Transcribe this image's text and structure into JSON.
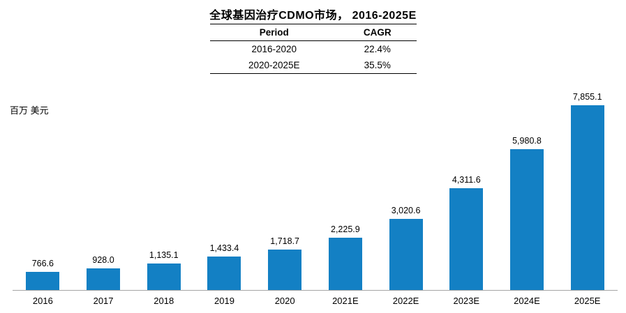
{
  "title": "全球基因治疗CDMO市场， 2016-2025E",
  "y_unit_label": "百万 美元",
  "colors": {
    "bar": "#1380C4",
    "baseline": "#a6a6a6"
  },
  "cagr_table": {
    "headers": [
      "Period",
      "CAGR"
    ],
    "rows": [
      [
        "2016-2020",
        "22.4%"
      ],
      [
        "2020-2025E",
        "35.5%"
      ]
    ]
  },
  "chart_data": {
    "type": "bar",
    "title": "全球基因治疗CDMO市场， 2016-2025E",
    "xlabel": "",
    "ylabel": "百万 美元",
    "ylim": [
      0,
      8000
    ],
    "grid": false,
    "legend": "none",
    "categories": [
      "2016",
      "2017",
      "2018",
      "2019",
      "2020",
      "2021E",
      "2022E",
      "2023E",
      "2024E",
      "2025E"
    ],
    "values": [
      766.6,
      928.0,
      1135.1,
      1433.4,
      1718.7,
      2225.9,
      3020.6,
      4311.6,
      5980.8,
      7855.1
    ],
    "data_labels": [
      "766.6",
      "928.0",
      "1,135.1",
      "1,433.4",
      "1,718.7",
      "2,225.9",
      "3,020.6",
      "4,311.6",
      "5,980.8",
      "7,855.1"
    ]
  }
}
